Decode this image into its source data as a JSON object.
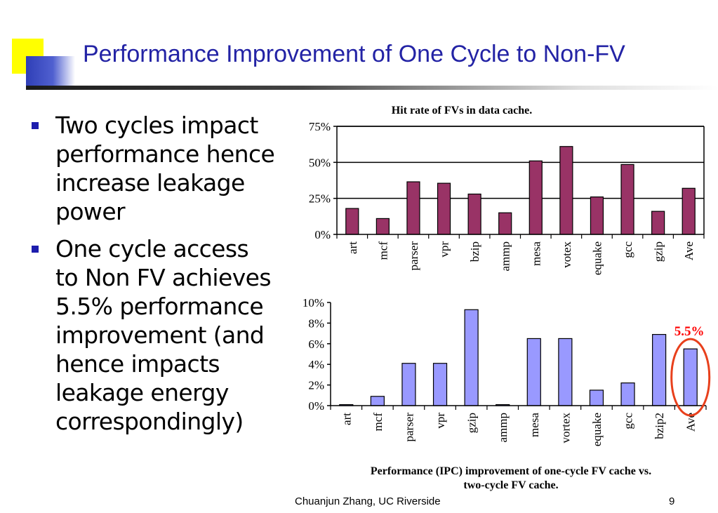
{
  "slide": {
    "title": "Performance Improvement of One Cycle to Non-FV",
    "bullets": [
      "Two cycles impact performance hence increase leakage power",
      "One cycle access to Non FV achieves 5.5% performance improvement (and hence impacts leakage energy correspondingly)"
    ],
    "footer_author": "Chuanjun Zhang, UC Riverside",
    "page_number": "9"
  },
  "colors": {
    "title": "#2323a5",
    "bullet": "#1d1dad",
    "chart1_bar": "#993366",
    "chart2_bar": "#9999ff",
    "highlight": "#e8401c",
    "annotation": "#ff0000"
  },
  "chart_data": [
    {
      "type": "bar",
      "title": "Hit rate of FVs in data cache.",
      "categories": [
        "art",
        "mcf",
        "parser",
        "vpr",
        "bzip",
        "ammp",
        "mesa",
        "votex",
        "equake",
        "gcc",
        "gzip",
        "Ave"
      ],
      "values": [
        18,
        11,
        36.5,
        35.5,
        28,
        15,
        51,
        61,
        26,
        48.5,
        16,
        32
      ],
      "unit": "%",
      "ylim": [
        0,
        75
      ],
      "yticks": [
        "0%",
        "25%",
        "50%",
        "75%"
      ],
      "ytick_values": [
        0,
        25,
        50,
        75
      ],
      "grid": true,
      "bar_color": "#993366"
    },
    {
      "type": "bar",
      "title": "Performance (IPC) improvement of one-cycle FV cache vs. two-cycle FV cache.",
      "title_lines": [
        "Performance (IPC) improvement of one-cycle FV cache vs.",
        "two-cycle FV cache."
      ],
      "categories": [
        "art",
        "mcf",
        "parser",
        "vpr",
        "gzip",
        "ammp",
        "mesa",
        "vortex",
        "equake",
        "gcc",
        "bzip2",
        "Ave"
      ],
      "values": [
        0.1,
        0.9,
        4.1,
        4.1,
        9.3,
        0.1,
        6.5,
        6.5,
        1.5,
        2.2,
        6.9,
        5.5
      ],
      "unit": "%",
      "ylim": [
        0,
        10
      ],
      "yticks": [
        "0%",
        "2%",
        "4%",
        "6%",
        "8%",
        "10%"
      ],
      "ytick_values": [
        0,
        2,
        4,
        6,
        8,
        10
      ],
      "grid": false,
      "bar_color": "#9999ff",
      "annotation": {
        "text": "5.5%",
        "category": "Ave"
      }
    }
  ]
}
